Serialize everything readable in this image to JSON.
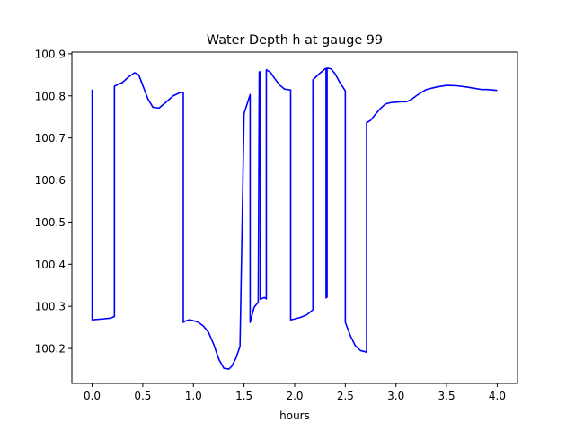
{
  "chart_data": {
    "type": "line",
    "title": "Water Depth h at gauge 99",
    "xlabel": "hours",
    "ylabel": "",
    "xlim": [
      -0.2,
      4.2
    ],
    "ylim": [
      100.117,
      100.904
    ],
    "x_ticks": [
      0.0,
      0.5,
      1.0,
      1.5,
      2.0,
      2.5,
      3.0,
      3.5,
      4.0
    ],
    "x_tick_labels": [
      "0.0",
      "0.5",
      "1.0",
      "1.5",
      "2.0",
      "2.5",
      "3.0",
      "3.5",
      "4.0"
    ],
    "y_ticks": [
      100.2,
      100.3,
      100.4,
      100.5,
      100.6,
      100.7,
      100.8,
      100.9
    ],
    "y_tick_labels": [
      "100.2",
      "100.3",
      "100.4",
      "100.5",
      "100.6",
      "100.7",
      "100.8",
      "100.9"
    ],
    "grid": false,
    "series": [
      {
        "color": "#0000ff",
        "x": [
          0.0,
          0.0,
          0.1,
          0.18,
          0.22,
          0.22,
          0.3,
          0.36,
          0.42,
          0.46,
          0.5,
          0.55,
          0.6,
          0.66,
          0.72,
          0.8,
          0.87,
          0.9,
          0.9,
          0.92,
          0.96,
          1.0,
          1.05,
          1.1,
          1.15,
          1.2,
          1.25,
          1.3,
          1.35,
          1.38,
          1.42,
          1.46,
          1.5,
          1.5,
          1.56,
          1.56,
          1.6,
          1.64,
          1.65,
          1.66,
          1.66,
          1.7,
          1.72,
          1.72,
          1.76,
          1.8,
          1.85,
          1.9,
          1.96,
          1.96,
          2.0,
          2.06,
          2.12,
          2.18,
          2.18,
          2.24,
          2.3,
          2.31,
          2.31,
          2.32,
          2.32,
          2.36,
          2.4,
          2.45,
          2.5,
          2.5,
          2.55,
          2.6,
          2.65,
          2.7,
          2.71,
          2.71,
          2.75,
          2.8,
          2.85,
          2.9,
          2.95,
          3.0,
          3.05,
          3.1,
          3.15,
          3.2,
          3.25,
          3.3,
          3.35,
          3.4,
          3.5,
          3.6,
          3.7,
          3.8,
          3.85,
          3.9,
          4.0
        ],
        "y": [
          100.815,
          100.268,
          100.27,
          100.272,
          100.276,
          100.823,
          100.832,
          100.845,
          100.855,
          100.85,
          100.825,
          100.793,
          100.773,
          100.771,
          100.783,
          100.8,
          100.808,
          100.808,
          100.262,
          100.265,
          100.268,
          100.266,
          100.262,
          100.253,
          100.238,
          100.21,
          100.175,
          100.153,
          100.151,
          100.158,
          100.177,
          100.205,
          100.755,
          100.758,
          100.803,
          100.262,
          100.298,
          100.31,
          100.857,
          100.857,
          100.317,
          100.321,
          100.318,
          100.862,
          100.856,
          100.842,
          100.826,
          100.816,
          100.814,
          100.268,
          100.27,
          100.274,
          100.28,
          100.292,
          100.838,
          100.852,
          100.864,
          100.865,
          100.32,
          100.322,
          100.866,
          100.864,
          100.852,
          100.83,
          100.812,
          100.262,
          100.23,
          100.206,
          100.195,
          100.192,
          100.191,
          100.736,
          100.742,
          100.757,
          100.771,
          100.781,
          100.784,
          100.785,
          100.786,
          100.786,
          100.791,
          100.8,
          100.808,
          100.815,
          100.818,
          100.821,
          100.825,
          100.824,
          100.821,
          100.817,
          100.815,
          100.815,
          100.813
        ]
      }
    ]
  }
}
